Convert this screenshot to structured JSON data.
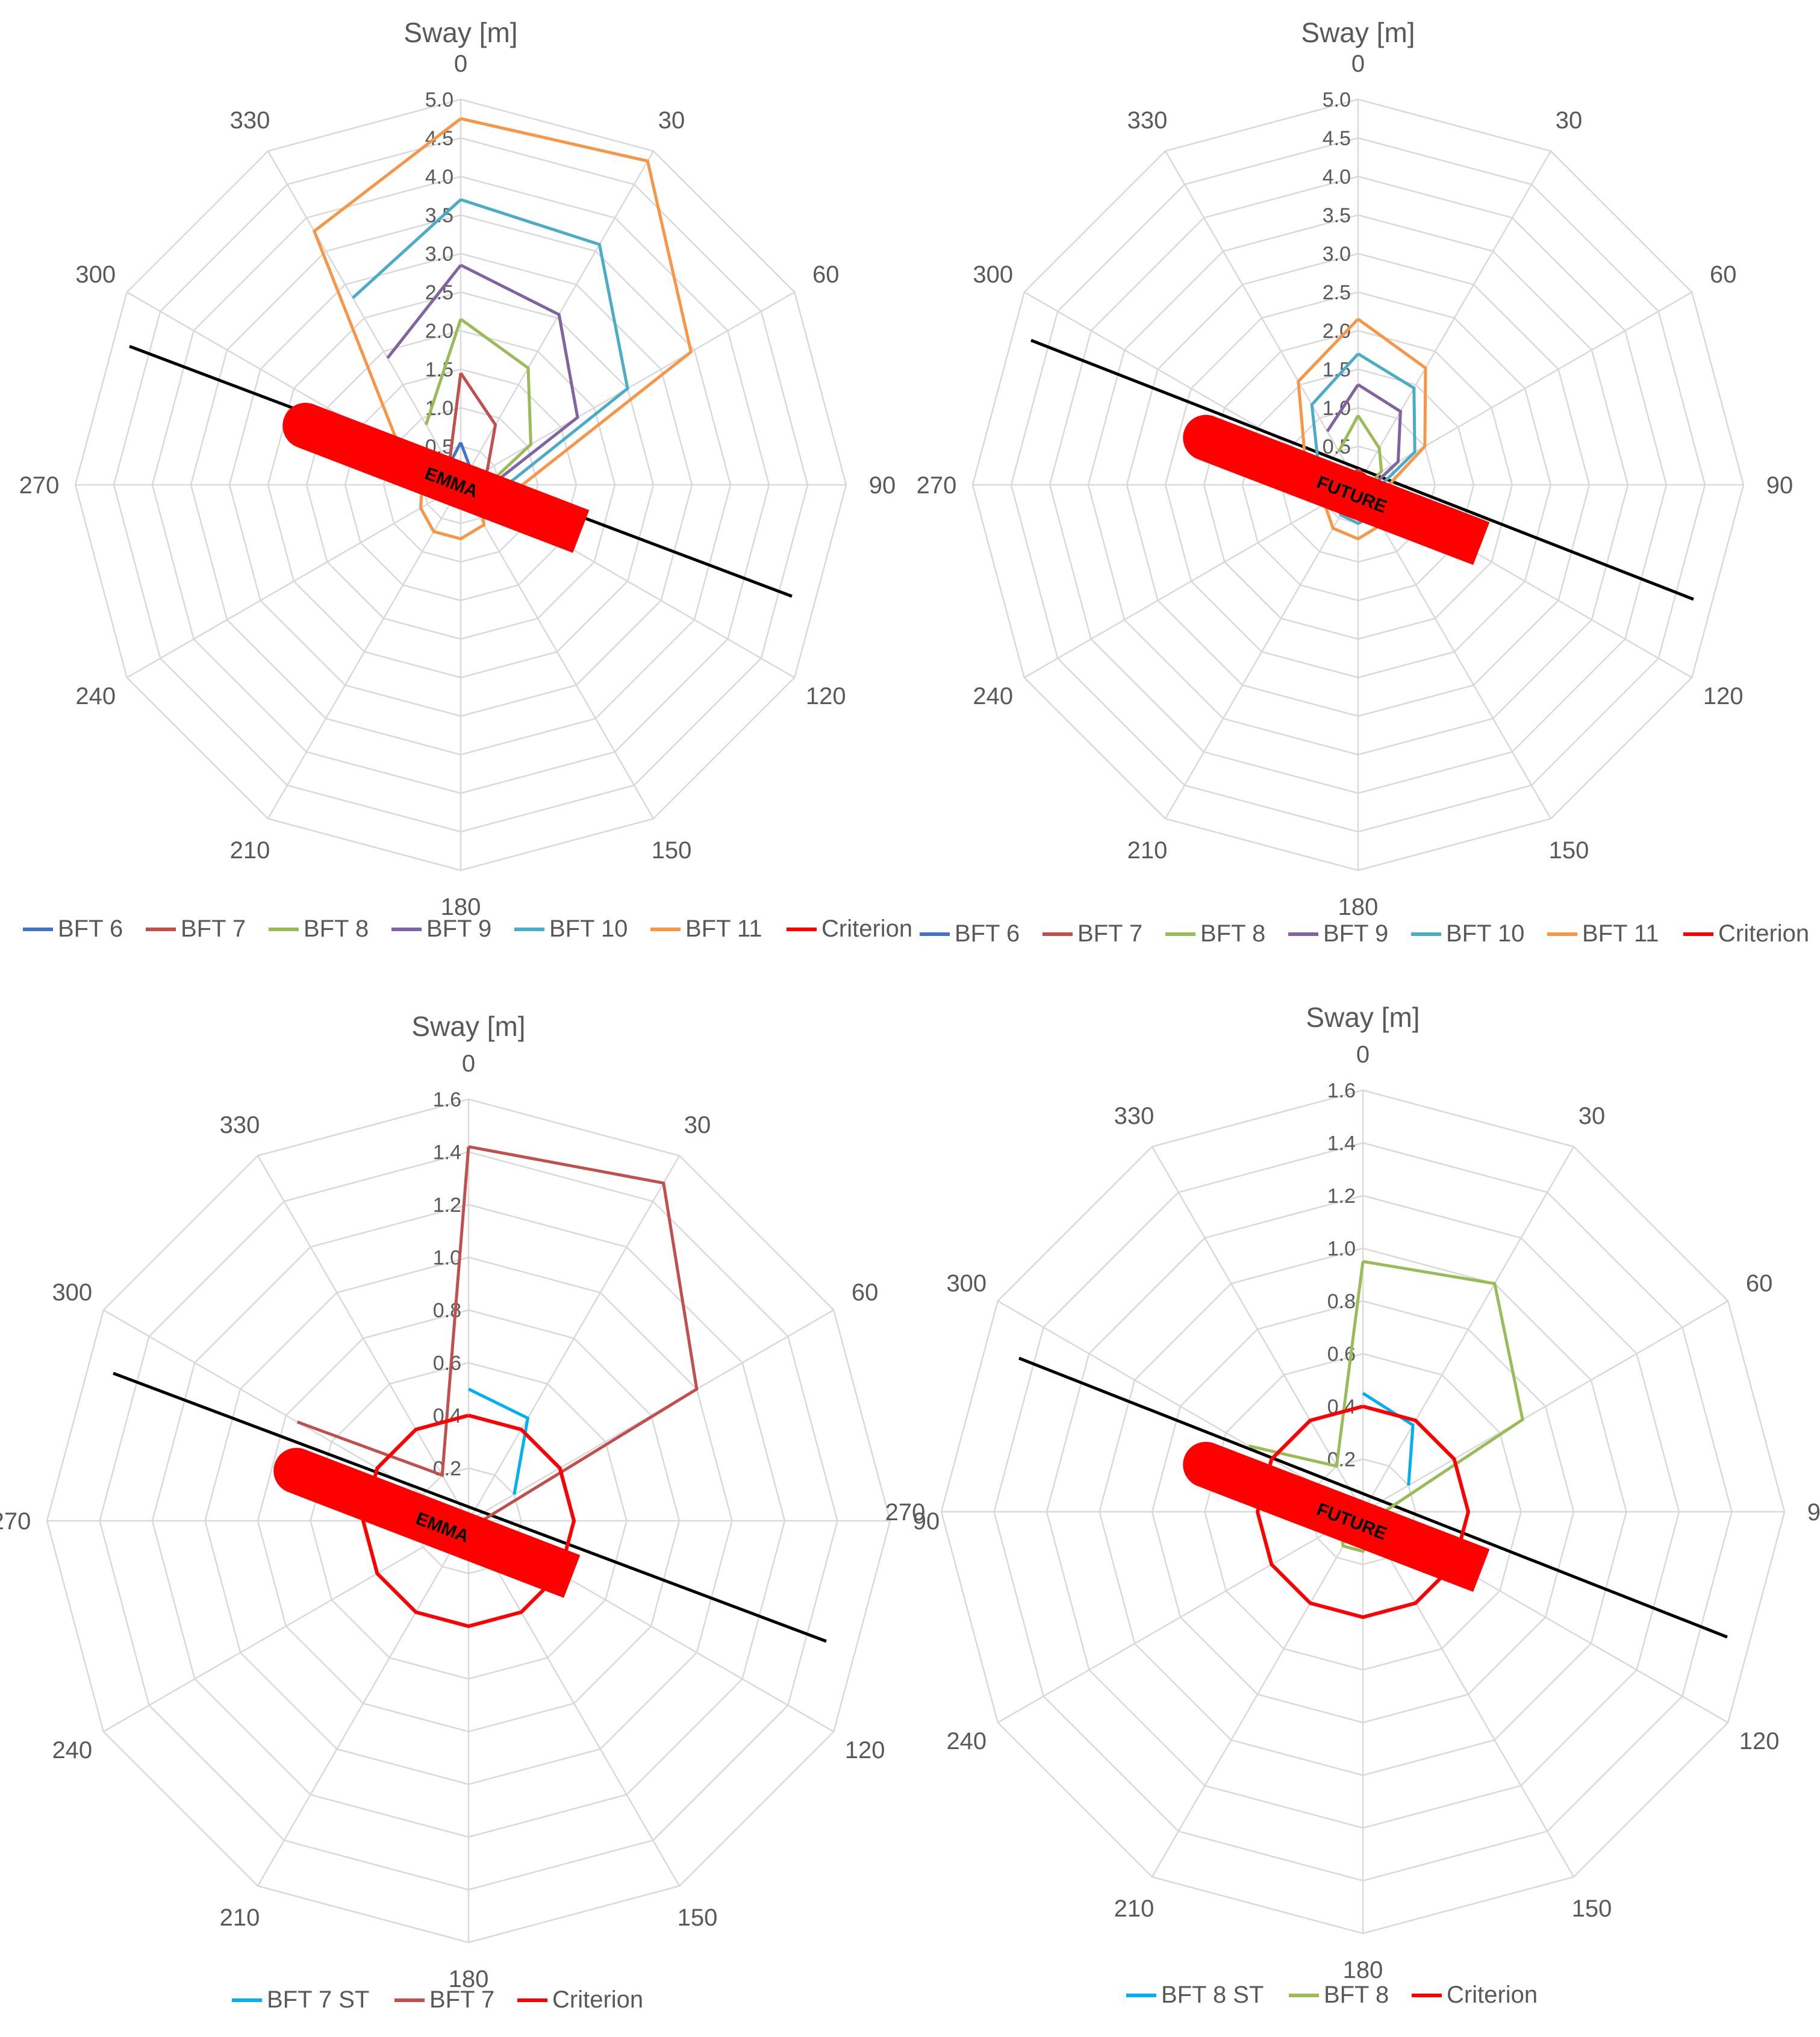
{
  "chart_data": [
    {
      "type": "radar",
      "title": "Sway [m]",
      "vessel_label": "EMMA",
      "angles": [
        "0",
        "30",
        "60",
        "90",
        "120",
        "150",
        "180",
        "210",
        "240",
        "270",
        "300",
        "330"
      ],
      "rlim": [
        0,
        5.0
      ],
      "ticks": [
        "5.0",
        "4.5",
        "4.0",
        "3.5",
        "3.0",
        "2.5",
        "2.0",
        "1.5",
        "1.0",
        "0.5"
      ],
      "grid": true,
      "legend_position": "bottom",
      "series": [
        {
          "name": "BFT 6",
          "color": "#4472c4",
          "values": [
            0.55,
            0.25,
            0.1,
            0.08,
            0.05,
            null,
            null,
            null,
            null,
            null,
            null,
            0.3
          ]
        },
        {
          "name": "BFT 7",
          "color": "#c0504d",
          "values": [
            1.45,
            0.9,
            0.4,
            0.25,
            0.1,
            null,
            null,
            null,
            null,
            null,
            null,
            0.3
          ]
        },
        {
          "name": "BFT 8",
          "color": "#9bbb59",
          "values": [
            2.15,
            1.75,
            1.05,
            0.35,
            0.15,
            null,
            null,
            null,
            null,
            null,
            null,
            0.9
          ]
        },
        {
          "name": "BFT 9",
          "color": "#8064a2",
          "values": [
            2.85,
            2.55,
            1.75,
            0.4,
            0.15,
            null,
            null,
            null,
            null,
            null,
            null,
            1.9
          ]
        },
        {
          "name": "BFT 10",
          "color": "#4bacc6",
          "values": [
            3.7,
            3.6,
            2.5,
            0.6,
            0.15,
            null,
            null,
            null,
            null,
            null,
            null,
            2.8
          ]
        },
        {
          "name": "BFT 11",
          "color": "#f79646",
          "values": [
            4.75,
            4.85,
            3.45,
            0.8,
            0.3,
            0.6,
            0.7,
            0.7,
            0.6,
            0.5,
            0.9,
            3.8
          ]
        },
        {
          "name": "Criterion",
          "color": "#ff0000",
          "values": [
            0.15,
            0.15,
            0.15,
            0.15,
            0.15,
            0.15,
            0.15,
            0.15,
            0.15,
            0.15,
            0.15,
            0.15
          ]
        }
      ]
    },
    {
      "type": "radar",
      "title": "Sway [m]",
      "vessel_label": "FUTURE",
      "angles": [
        "0",
        "30",
        "60",
        "90",
        "120",
        "150",
        "180",
        "210",
        "240",
        "270",
        "300",
        "330"
      ],
      "rlim": [
        0,
        5.0
      ],
      "ticks": [
        "5.0",
        "4.5",
        "4.0",
        "3.5",
        "3.0",
        "2.5",
        "2.0",
        "1.5",
        "1.0",
        "0.5"
      ],
      "grid": true,
      "legend_position": "bottom",
      "series": [
        {
          "name": "BFT 6",
          "color": "#4472c4",
          "values": [
            0.1,
            0.1,
            0.05,
            0.05,
            0.05,
            null,
            null,
            null,
            null,
            null,
            null,
            0.1
          ]
        },
        {
          "name": "BFT 7",
          "color": "#c0504d",
          "values": [
            0.2,
            0.15,
            0.1,
            0.1,
            0.05,
            null,
            null,
            null,
            null,
            null,
            null,
            0.15
          ]
        },
        {
          "name": "BFT 8",
          "color": "#9bbb59",
          "values": [
            0.9,
            0.55,
            0.35,
            0.15,
            0.1,
            null,
            null,
            null,
            null,
            null,
            null,
            0.5
          ]
        },
        {
          "name": "BFT 9",
          "color": "#8064a2",
          "values": [
            1.3,
            1.1,
            0.6,
            0.2,
            0.1,
            null,
            null,
            null,
            null,
            null,
            null,
            0.8
          ]
        },
        {
          "name": "BFT 10",
          "color": "#4bacc6",
          "values": [
            1.7,
            1.45,
            0.85,
            0.3,
            0.3,
            0.45,
            0.5,
            0.45,
            0.35,
            0.25,
            0.6,
            1.2
          ]
        },
        {
          "name": "BFT 11",
          "color": "#f79646",
          "values": [
            2.15,
            1.75,
            1.0,
            0.4,
            0.45,
            0.6,
            0.7,
            0.65,
            0.5,
            0.35,
            0.8,
            1.55
          ]
        },
        {
          "name": "Criterion",
          "color": "#ff0000",
          "values": [
            0.15,
            0.15,
            0.15,
            0.15,
            0.15,
            0.15,
            0.15,
            0.15,
            0.15,
            0.15,
            0.15,
            0.15
          ]
        }
      ]
    },
    {
      "type": "radar",
      "title": "Sway [m]",
      "vessel_label": "EMMA",
      "angles": [
        "0",
        "30",
        "60",
        "90",
        "120",
        "150",
        "180",
        "210",
        "240",
        "270",
        "300",
        "330"
      ],
      "rlim": [
        0,
        1.6
      ],
      "ticks": [
        "1.6",
        "1.4",
        "1.2",
        "1.0",
        "0.8",
        "0.6",
        "0.4",
        "0.2"
      ],
      "grid": true,
      "legend_position": "bottom",
      "series": [
        {
          "name": "BFT 7 ST",
          "color": "#00b0f0",
          "values": [
            0.5,
            0.45,
            0.2,
            null,
            null,
            null,
            null,
            null,
            null,
            null,
            null,
            null
          ]
        },
        {
          "name": "BFT 7",
          "color": "#c0504d",
          "values": [
            1.42,
            1.48,
            1.0,
            0.05,
            null,
            null,
            null,
            null,
            null,
            null,
            0.75,
            0.2
          ]
        },
        {
          "name": "Criterion",
          "color": "#ff0000",
          "values": [
            0.4,
            0.4,
            0.4,
            0.4,
            0.4,
            0.4,
            0.4,
            0.4,
            0.4,
            0.4,
            0.4,
            0.4
          ]
        }
      ]
    },
    {
      "type": "radar",
      "title": "Sway [m]",
      "vessel_label": "FUTURE",
      "angles": [
        "0",
        "30",
        "60",
        "90",
        "120",
        "150",
        "180",
        "210",
        "240",
        "270",
        "300",
        "330"
      ],
      "rlim": [
        0,
        1.6
      ],
      "ticks": [
        "1.6",
        "1.4",
        "1.2",
        "1.0",
        "0.8",
        "0.6",
        "0.4",
        "0.2"
      ],
      "grid": true,
      "legend_position": "bottom",
      "series": [
        {
          "name": "BFT 8 ST",
          "color": "#00b0f0",
          "values": [
            0.45,
            0.38,
            0.2,
            null,
            null,
            null,
            null,
            null,
            null,
            null,
            null,
            null
          ]
        },
        {
          "name": "BFT 8",
          "color": "#9bbb59",
          "values": [
            0.95,
            1.0,
            0.7,
            0.08,
            null,
            0.1,
            0.15,
            0.15,
            0.1,
            null,
            0.5,
            0.2
          ]
        },
        {
          "name": "Criterion",
          "color": "#ff0000",
          "values": [
            0.4,
            0.4,
            0.4,
            0.4,
            0.4,
            0.4,
            0.4,
            0.4,
            0.4,
            0.4,
            0.4,
            0.4
          ]
        }
      ]
    }
  ]
}
